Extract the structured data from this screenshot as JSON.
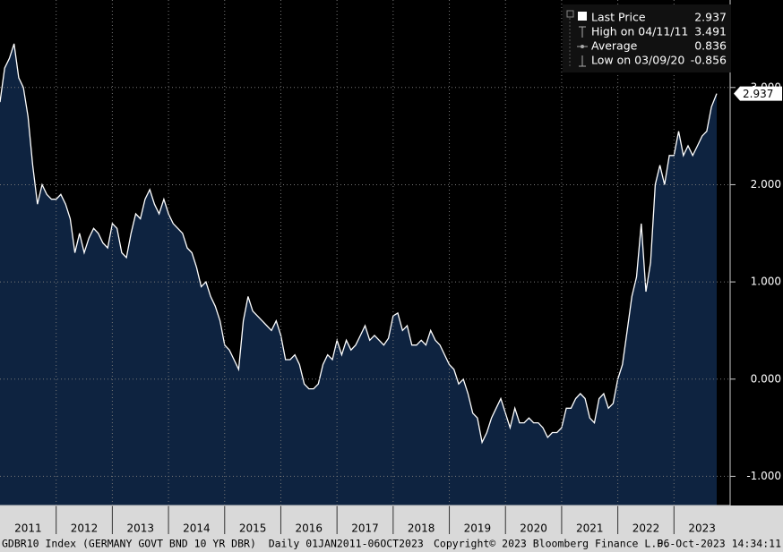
{
  "chart_data": {
    "type": "area",
    "x": [
      2011,
      2011.083,
      2011.167,
      2011.25,
      2011.333,
      2011.417,
      2011.5,
      2011.583,
      2011.667,
      2011.75,
      2011.833,
      2011.917,
      2012,
      2012.083,
      2012.167,
      2012.25,
      2012.333,
      2012.417,
      2012.5,
      2012.583,
      2012.667,
      2012.75,
      2012.833,
      2012.917,
      2013,
      2013.083,
      2013.167,
      2013.25,
      2013.333,
      2013.417,
      2013.5,
      2013.583,
      2013.667,
      2013.75,
      2013.833,
      2013.917,
      2014,
      2014.083,
      2014.167,
      2014.25,
      2014.333,
      2014.417,
      2014.5,
      2014.583,
      2014.667,
      2014.75,
      2014.833,
      2014.917,
      2015,
      2015.083,
      2015.167,
      2015.25,
      2015.333,
      2015.417,
      2015.5,
      2015.583,
      2015.667,
      2015.75,
      2015.833,
      2015.917,
      2016,
      2016.083,
      2016.167,
      2016.25,
      2016.333,
      2016.417,
      2016.5,
      2016.583,
      2016.667,
      2016.75,
      2016.833,
      2016.917,
      2017,
      2017.083,
      2017.167,
      2017.25,
      2017.333,
      2017.417,
      2017.5,
      2017.583,
      2017.667,
      2017.75,
      2017.833,
      2017.917,
      2018,
      2018.083,
      2018.167,
      2018.25,
      2018.333,
      2018.417,
      2018.5,
      2018.583,
      2018.667,
      2018.75,
      2018.833,
      2018.917,
      2019,
      2019.083,
      2019.167,
      2019.25,
      2019.333,
      2019.417,
      2019.5,
      2019.583,
      2019.667,
      2019.75,
      2019.833,
      2019.917,
      2020,
      2020.083,
      2020.167,
      2020.25,
      2020.333,
      2020.417,
      2020.5,
      2020.583,
      2020.667,
      2020.75,
      2020.833,
      2020.917,
      2021,
      2021.083,
      2021.167,
      2021.25,
      2021.333,
      2021.417,
      2021.5,
      2021.583,
      2021.667,
      2021.75,
      2021.833,
      2021.917,
      2022,
      2022.083,
      2022.167,
      2022.25,
      2022.333,
      2022.417,
      2022.5,
      2022.583,
      2022.667,
      2022.75,
      2022.833,
      2022.917,
      2023,
      2023.083,
      2023.167,
      2023.25,
      2023.333,
      2023.417,
      2023.5,
      2023.583,
      2023.667,
      2023.76
    ],
    "series": [
      {
        "name": "Last Price",
        "color": "#ffffff",
        "fill": "#0e2340",
        "values": [
          2.85,
          3.2,
          3.3,
          3.45,
          3.1,
          3.0,
          2.7,
          2.2,
          1.8,
          2.0,
          1.9,
          1.85,
          1.85,
          1.9,
          1.8,
          1.65,
          1.3,
          1.5,
          1.3,
          1.45,
          1.55,
          1.5,
          1.4,
          1.35,
          1.6,
          1.55,
          1.3,
          1.25,
          1.5,
          1.7,
          1.65,
          1.85,
          1.95,
          1.8,
          1.7,
          1.85,
          1.7,
          1.6,
          1.55,
          1.5,
          1.35,
          1.3,
          1.15,
          0.95,
          1.0,
          0.85,
          0.75,
          0.6,
          0.35,
          0.3,
          0.2,
          0.1,
          0.6,
          0.85,
          0.7,
          0.65,
          0.6,
          0.55,
          0.5,
          0.6,
          0.45,
          0.2,
          0.2,
          0.25,
          0.15,
          -0.05,
          -0.1,
          -0.1,
          -0.05,
          0.15,
          0.25,
          0.2,
          0.4,
          0.25,
          0.4,
          0.3,
          0.35,
          0.45,
          0.55,
          0.4,
          0.45,
          0.4,
          0.35,
          0.42,
          0.65,
          0.68,
          0.5,
          0.55,
          0.35,
          0.35,
          0.4,
          0.35,
          0.5,
          0.4,
          0.35,
          0.25,
          0.15,
          0.1,
          -0.05,
          0.0,
          -0.15,
          -0.35,
          -0.4,
          -0.65,
          -0.55,
          -0.4,
          -0.3,
          -0.2,
          -0.35,
          -0.5,
          -0.3,
          -0.45,
          -0.45,
          -0.4,
          -0.45,
          -0.45,
          -0.5,
          -0.6,
          -0.55,
          -0.55,
          -0.5,
          -0.3,
          -0.3,
          -0.2,
          -0.15,
          -0.2,
          -0.4,
          -0.45,
          -0.2,
          -0.15,
          -0.3,
          -0.25,
          0.0,
          0.15,
          0.5,
          0.85,
          1.05,
          1.6,
          0.9,
          1.2,
          2.0,
          2.2,
          2.0,
          2.3,
          2.3,
          2.55,
          2.3,
          2.4,
          2.3,
          2.4,
          2.5,
          2.55,
          2.8,
          2.937
        ]
      }
    ],
    "xlim": [
      2011,
      2024
    ],
    "xticks": [
      2011,
      2012,
      2013,
      2014,
      2015,
      2016,
      2017,
      2018,
      2019,
      2020,
      2021,
      2022,
      2023
    ],
    "ylim": [
      -1.3,
      3.9
    ],
    "yticks": [
      {
        "value": -1,
        "label": "-1.000"
      },
      {
        "value": 0,
        "label": "0.000"
      },
      {
        "value": 1,
        "label": "1.000"
      },
      {
        "value": 2,
        "label": "2.000"
      },
      {
        "value": 3,
        "label": "3.000"
      }
    ],
    "grid": true,
    "legend": [
      {
        "label": "Last Price",
        "value": "2.937"
      },
      {
        "label": "High on 04/11/11",
        "value": "3.491"
      },
      {
        "label": "Average",
        "value": "0.836"
      },
      {
        "label": "Low on 03/09/20",
        "value": "-0.856"
      }
    ],
    "last_value": 2.937,
    "last_label": "2.937",
    "footer": {
      "source": "GDBR10 Index (GERMANY GOVT BND 10 YR DBR)  Daily 01JAN2011-06OCT2023",
      "copyright": "Copyright© 2023 Bloomberg Finance L.P.",
      "timestamp": "06-Oct-2023 14:34:11"
    }
  }
}
